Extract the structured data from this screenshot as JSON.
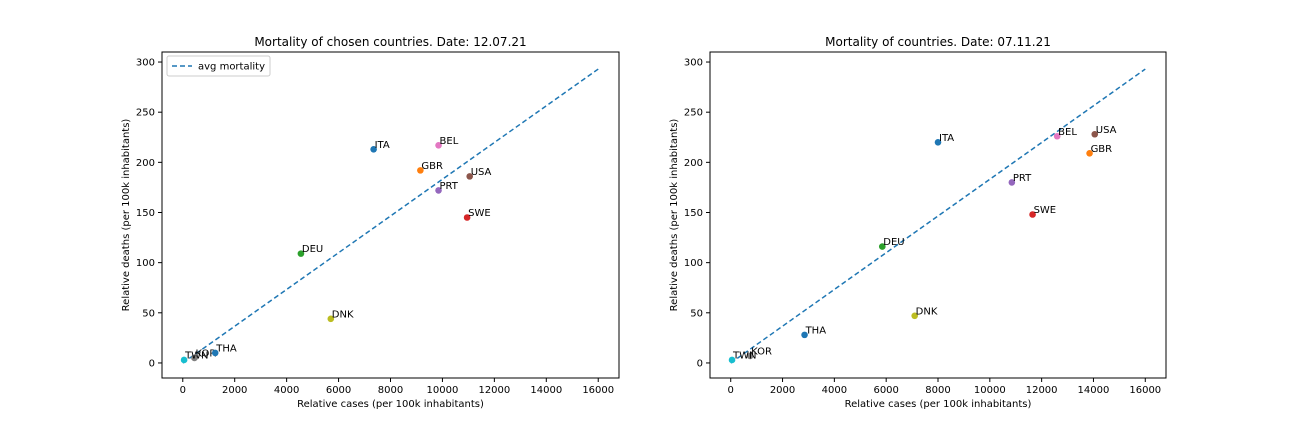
{
  "chart_data": [
    {
      "type": "scatter",
      "title": "Mortality of chosen countries. Date: 12.07.21",
      "xlabel": "Relative cases (per 100k inhabitants)",
      "ylabel": "Relative deaths (per 100k inhabitants)",
      "xlim": [
        -800,
        16800
      ],
      "ylim": [
        -15,
        310
      ],
      "xticks": [
        0,
        2000,
        4000,
        6000,
        8000,
        10000,
        12000,
        14000,
        16000
      ],
      "yticks": [
        0,
        50,
        100,
        150,
        200,
        250,
        300
      ],
      "grid": false,
      "legend": {
        "placement": "top-left",
        "entries": [
          "avg mortality"
        ]
      },
      "line": {
        "name": "avg mortality",
        "style": "dashed",
        "color": "#1f77b4",
        "x": [
          0,
          16000
        ],
        "y": [
          0,
          293
        ]
      },
      "points": [
        {
          "label": "ITA",
          "x": 7350,
          "y": 213,
          "color": "#1f77b4"
        },
        {
          "label": "GBR",
          "x": 9150,
          "y": 192,
          "color": "#ff7f0e"
        },
        {
          "label": "DEU",
          "x": 4550,
          "y": 109,
          "color": "#2ca02c"
        },
        {
          "label": "SWE",
          "x": 10950,
          "y": 145,
          "color": "#d62728"
        },
        {
          "label": "PRT",
          "x": 9850,
          "y": 172,
          "color": "#9467bd"
        },
        {
          "label": "USA",
          "x": 11050,
          "y": 186,
          "color": "#8c564b"
        },
        {
          "label": "BEL",
          "x": 9850,
          "y": 217,
          "color": "#e377c2"
        },
        {
          "label": "KOR",
          "x": 450,
          "y": 5,
          "color": "#7f7f7f"
        },
        {
          "label": "DNK",
          "x": 5700,
          "y": 44,
          "color": "#bcbd22"
        },
        {
          "label": "TWN",
          "x": 50,
          "y": 3,
          "color": "#17becf"
        },
        {
          "label": "THA",
          "x": 1250,
          "y": 10,
          "color": "#1f77b4"
        }
      ]
    },
    {
      "type": "scatter",
      "title": "Mortality of countries. Date: 07.11.21",
      "xlabel": "Relative cases (per 100k inhabitants)",
      "ylabel": "Relative deaths (per 100k inhabitants)",
      "xlim": [
        -800,
        16800
      ],
      "ylim": [
        -15,
        310
      ],
      "xticks": [
        0,
        2000,
        4000,
        6000,
        8000,
        10000,
        12000,
        14000,
        16000
      ],
      "yticks": [
        0,
        50,
        100,
        150,
        200,
        250,
        300
      ],
      "grid": false,
      "line": {
        "style": "dashed",
        "color": "#1f77b4",
        "x": [
          0,
          16000
        ],
        "y": [
          0,
          293
        ]
      },
      "points": [
        {
          "label": "ITA",
          "x": 8000,
          "y": 220,
          "color": "#1f77b4"
        },
        {
          "label": "GBR",
          "x": 13850,
          "y": 209,
          "color": "#ff7f0e"
        },
        {
          "label": "DEU",
          "x": 5850,
          "y": 116,
          "color": "#2ca02c"
        },
        {
          "label": "SWE",
          "x": 11650,
          "y": 148,
          "color": "#d62728"
        },
        {
          "label": "PRT",
          "x": 10850,
          "y": 180,
          "color": "#9467bd"
        },
        {
          "label": "USA",
          "x": 14050,
          "y": 228,
          "color": "#8c564b"
        },
        {
          "label": "BEL",
          "x": 12600,
          "y": 226,
          "color": "#e377c2"
        },
        {
          "label": "KOR",
          "x": 750,
          "y": 7,
          "color": "#7f7f7f"
        },
        {
          "label": "DNK",
          "x": 7100,
          "y": 47,
          "color": "#bcbd22"
        },
        {
          "label": "TWN",
          "x": 50,
          "y": 3,
          "color": "#17becf"
        },
        {
          "label": "THA",
          "x": 2850,
          "y": 28,
          "color": "#1f77b4"
        }
      ]
    }
  ]
}
